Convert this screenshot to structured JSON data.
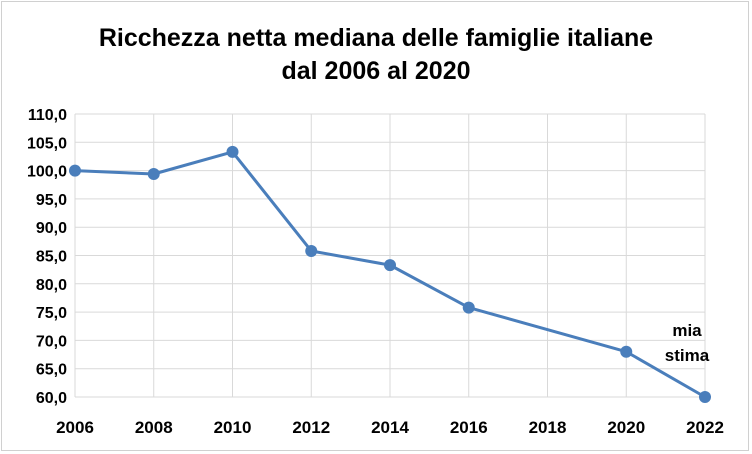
{
  "chart_data": {
    "type": "line",
    "title_line1": "Ricchezza netta mediana delle famiglie italiane",
    "title_line2": "dal 2006 al 2020",
    "xlabel": "",
    "ylabel": "",
    "x_ticks": [
      "2006",
      "2008",
      "2010",
      "2012",
      "2014",
      "2016",
      "2018",
      "2020",
      "2022"
    ],
    "xlim": [
      2006,
      2022
    ],
    "ylim": [
      60,
      110
    ],
    "y_ticks": [
      "60,0",
      "65,0",
      "70,0",
      "75,0",
      "80,0",
      "85,0",
      "90,0",
      "95,0",
      "100,0",
      "105,0",
      "110,0"
    ],
    "grid": true,
    "series": [
      {
        "name": "Ricchezza netta mediana",
        "color": "#4a7ebb",
        "x": [
          2006,
          2008,
          2010,
          2012,
          2014,
          2016,
          2020,
          2022
        ],
        "y": [
          100.0,
          99.4,
          103.3,
          85.8,
          83.3,
          75.8,
          68.0,
          60.0
        ]
      }
    ],
    "annotation": {
      "line1": "mia",
      "line2": "stima"
    }
  }
}
